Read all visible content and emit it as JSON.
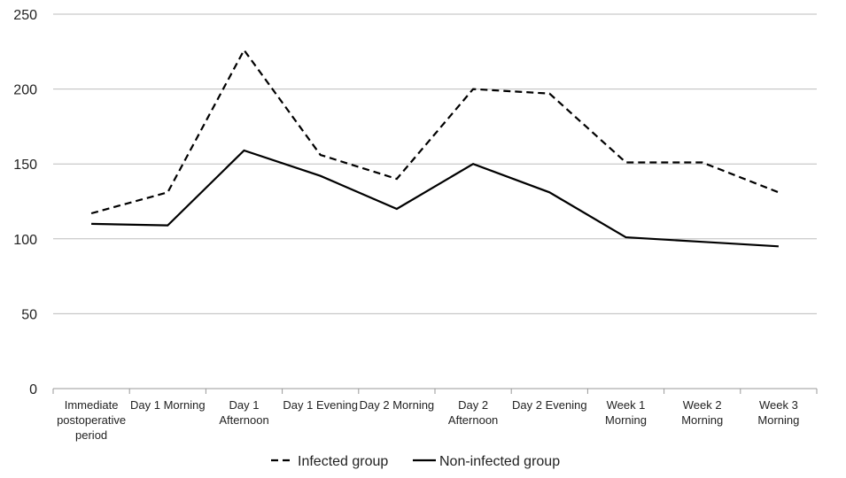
{
  "chart_data": {
    "type": "line",
    "categories": [
      [
        "Immediate",
        "postoperative",
        "period"
      ],
      [
        "Day 1 Morning"
      ],
      [
        "Day 1",
        "Afternoon"
      ],
      [
        "Day 1 Evening"
      ],
      [
        "Day 2 Morning"
      ],
      [
        "Day 2",
        "Afternoon"
      ],
      [
        "Day 2 Evening"
      ],
      [
        "Week 1",
        "Morning"
      ],
      [
        "Week 2",
        "Morning"
      ],
      [
        "Week 3",
        "Morning"
      ]
    ],
    "series": [
      {
        "name": "Infected group",
        "style": "dashed",
        "color": "#000000",
        "values": [
          117,
          131,
          226,
          156,
          140,
          200,
          197,
          151,
          151,
          131
        ]
      },
      {
        "name": "Non-infected group",
        "style": "solid",
        "color": "#000000",
        "values": [
          110,
          109,
          159,
          142,
          120,
          150,
          131,
          101,
          98,
          95
        ]
      }
    ],
    "yticks": [
      "0",
      "50",
      "100",
      "150",
      "200",
      "250"
    ],
    "ylim": [
      0,
      250
    ],
    "grid": true,
    "legend": "bottom"
  }
}
